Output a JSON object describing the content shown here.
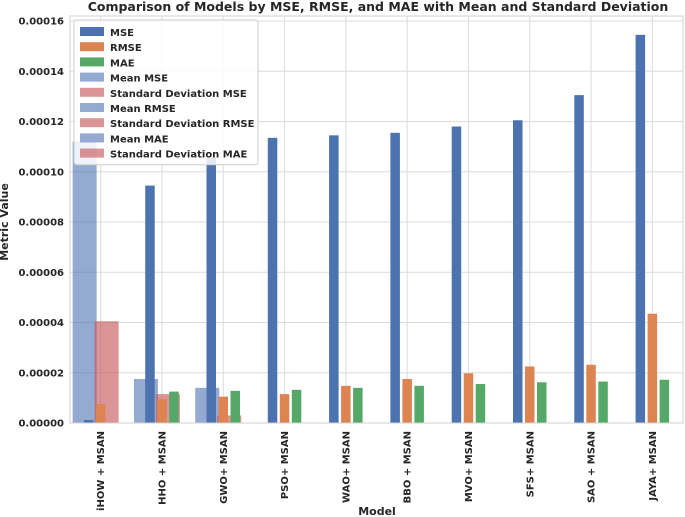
{
  "chart_data": {
    "type": "bar",
    "title": "Comparison of Models by MSE, RMSE, and MAE with Mean and Standard Deviation",
    "xlabel": "Model",
    "ylabel": "Metric Value",
    "ylim": [
      0,
      0.000162
    ],
    "yticks": [
      "0.00000",
      "0.00002",
      "0.00004",
      "0.00006",
      "0.00008",
      "0.00010",
      "0.00012",
      "0.00014",
      "0.00016"
    ],
    "grid": true,
    "legend_position": "top-left",
    "categories": [
      "iHOW + MSAN",
      "HHO + MSAN",
      "GWO+ MSAN",
      "PSO+ MSAN",
      "WAO+ MSAN",
      "BBO + MSAN",
      "MVO+ MSAN",
      "SFS+ MSAN",
      "SAO + MSAN",
      "JAYA+ MSAN"
    ],
    "series": [
      {
        "name": "MSE",
        "color": "#4c72b0",
        "values": [
          1.2e-06,
          9.45e-05,
          0.0001058,
          0.0001135,
          0.0001145,
          0.0001155,
          0.000118,
          0.0001205,
          0.0001305,
          0.0001545
        ]
      },
      {
        "name": "RMSE",
        "color": "#dd8452",
        "values": [
          7.5e-06,
          9.5e-06,
          1.05e-05,
          1.15e-05,
          1.48e-05,
          1.75e-05,
          1.98e-05,
          2.25e-05,
          2.32e-05,
          4.35e-05
        ]
      },
      {
        "name": "MAE",
        "color": "#55a868",
        "values": [
          0.0,
          1.25e-05,
          1.28e-05,
          1.32e-05,
          1.4e-05,
          1.48e-05,
          1.55e-05,
          1.62e-05,
          1.65e-05,
          1.72e-05
        ]
      }
    ],
    "stat_bars": [
      {
        "name": "Mean MSE",
        "color": "#4c72b0",
        "opacity": 0.6,
        "category": 0,
        "value": 0.000112
      },
      {
        "name": "Standard Deviation MSE",
        "color": "#c44e52",
        "opacity": 0.6,
        "category": 0,
        "value": 4.05e-05
      },
      {
        "name": "Mean RMSE",
        "color": "#4c72b0",
        "opacity": 0.6,
        "category": 1,
        "value": 1.75e-05
      },
      {
        "name": "Standard Deviation RMSE",
        "color": "#c44e52",
        "opacity": 0.6,
        "category": 1,
        "value": 1.15e-05
      },
      {
        "name": "Mean MAE",
        "color": "#4c72b0",
        "opacity": 0.6,
        "category": 2,
        "value": 1.4e-05
      },
      {
        "name": "Standard Deviation MAE",
        "color": "#c44e52",
        "opacity": 0.6,
        "category": 2,
        "value": 3e-06
      }
    ],
    "legend": [
      "MSE",
      "RMSE",
      "MAE",
      "Mean MSE",
      "Standard Deviation MSE",
      "Mean RMSE",
      "Standard Deviation RMSE",
      "Mean MAE",
      "Standard Deviation MAE"
    ]
  }
}
